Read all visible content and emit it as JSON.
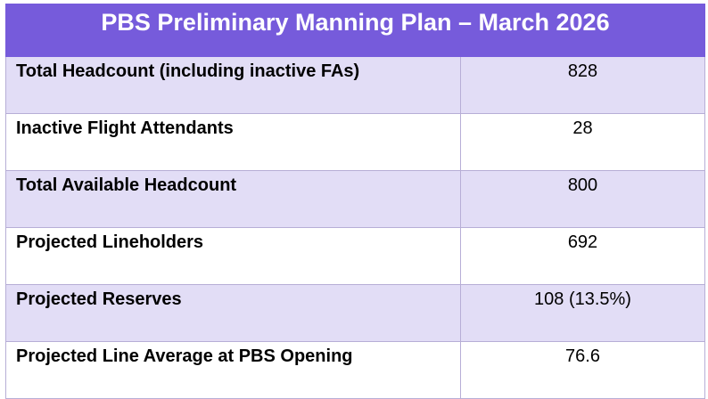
{
  "title": "PBS Preliminary Manning Plan – March 2026",
  "colors": {
    "header_bg": "#765bdb",
    "row_shade": "#e2ddf6",
    "border": "#b7aed6"
  },
  "rows": [
    {
      "label": "Total Headcount (including inactive FAs)",
      "value": "828"
    },
    {
      "label": "Inactive Flight Attendants",
      "value": "28"
    },
    {
      "label": "Total Available Headcount",
      "value": "800"
    },
    {
      "label": "Projected Lineholders",
      "value": "692"
    },
    {
      "label": "Projected Reserves",
      "value": "108 (13.5%)"
    },
    {
      "label": "Projected Line Average at PBS Opening",
      "value": "76.6"
    }
  ]
}
